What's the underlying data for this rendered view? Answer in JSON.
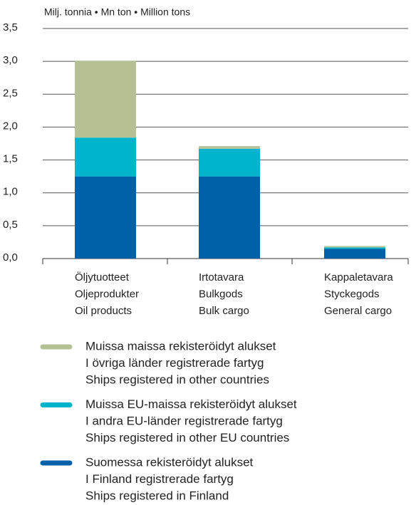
{
  "chart_data": {
    "type": "stacked_bar",
    "subtitle": "Milj. tonnia • Mn ton • Million tons",
    "categories": [
      [
        "Öljytuotteet",
        "Oljeprodukter",
        "Oil products"
      ],
      [
        "Irtotavara",
        "Bulkgods",
        "Bulk cargo"
      ],
      [
        "Kappaletavara",
        "Styckegods",
        "General cargo"
      ]
    ],
    "series": [
      {
        "name": [
          "Suomessa rekisteröidyt alukset",
          "I Finland registrerade fartyg",
          "Ships registered in Finland"
        ],
        "color": "#0060a8",
        "values": [
          1.25,
          1.25,
          0.15
        ]
      },
      {
        "name": [
          "Muissa EU-maissa rekisteröidyt alukset",
          "I andra EU-länder registrerade fartyg",
          "Ships registered in other EU countries"
        ],
        "color": "#00b4cc",
        "values": [
          0.59,
          0.42,
          0.02
        ]
      },
      {
        "name": [
          "Muissa maissa rekisteröidyt alukset",
          "I övriga länder registrerade fartyg",
          "Ships registered in other countries"
        ],
        "color": "#b5c195",
        "values": [
          1.17,
          0.04,
          0.02
        ]
      }
    ],
    "ylim": [
      0,
      3.5
    ],
    "yticks": [
      {
        "value": 0,
        "label": "0,0"
      },
      {
        "value": 0.5,
        "label": "0,5"
      },
      {
        "value": 1,
        "label": "1,0"
      },
      {
        "value": 1.5,
        "label": "1,5"
      },
      {
        "value": 2,
        "label": "2,0"
      },
      {
        "value": 2.5,
        "label": "2,5"
      },
      {
        "value": 3,
        "label": "3,0"
      },
      {
        "value": 3.5,
        "label": "3,5"
      }
    ],
    "grid": true
  }
}
